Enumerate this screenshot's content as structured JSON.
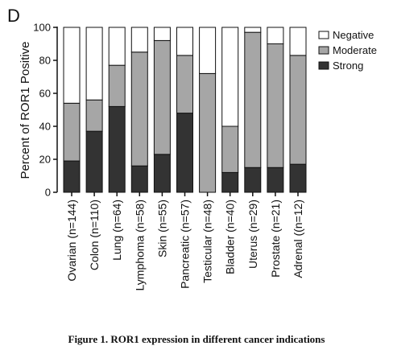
{
  "panel_label": "D",
  "caption": "Figure 1. ROR1 expression in different cancer indications",
  "chart_data": {
    "type": "bar",
    "stacked": true,
    "ylabel": "Percent of ROR1 Positive",
    "ylim": [
      0,
      100
    ],
    "yticks": [
      0,
      20,
      40,
      60,
      80,
      100
    ],
    "legend_position": "top-right",
    "categories": [
      "Ovarian (n=144)",
      "Colon (n=110)",
      "Lung (n=64)",
      "Lymphoma (n=58)",
      "Skin (n=55)",
      "Pancreatic (n=57)",
      "Testicular (n=48)",
      "Bladder (n=40)",
      "Uterus (n=29)",
      "Prostate (n=21)",
      "Adrenal ((n=12)"
    ],
    "series": [
      {
        "name": "Strong",
        "color": "#333333",
        "values": [
          19,
          37,
          52,
          16,
          23,
          48,
          0,
          12,
          15,
          15,
          17
        ]
      },
      {
        "name": "Moderate",
        "color": "#a6a6a6",
        "values": [
          35,
          19,
          25,
          69,
          69,
          35,
          72,
          28,
          82,
          75,
          66
        ]
      },
      {
        "name": "Negative",
        "color": "#ffffff",
        "values": [
          46,
          44,
          23,
          15,
          8,
          17,
          28,
          60,
          3,
          10,
          17
        ]
      }
    ]
  }
}
